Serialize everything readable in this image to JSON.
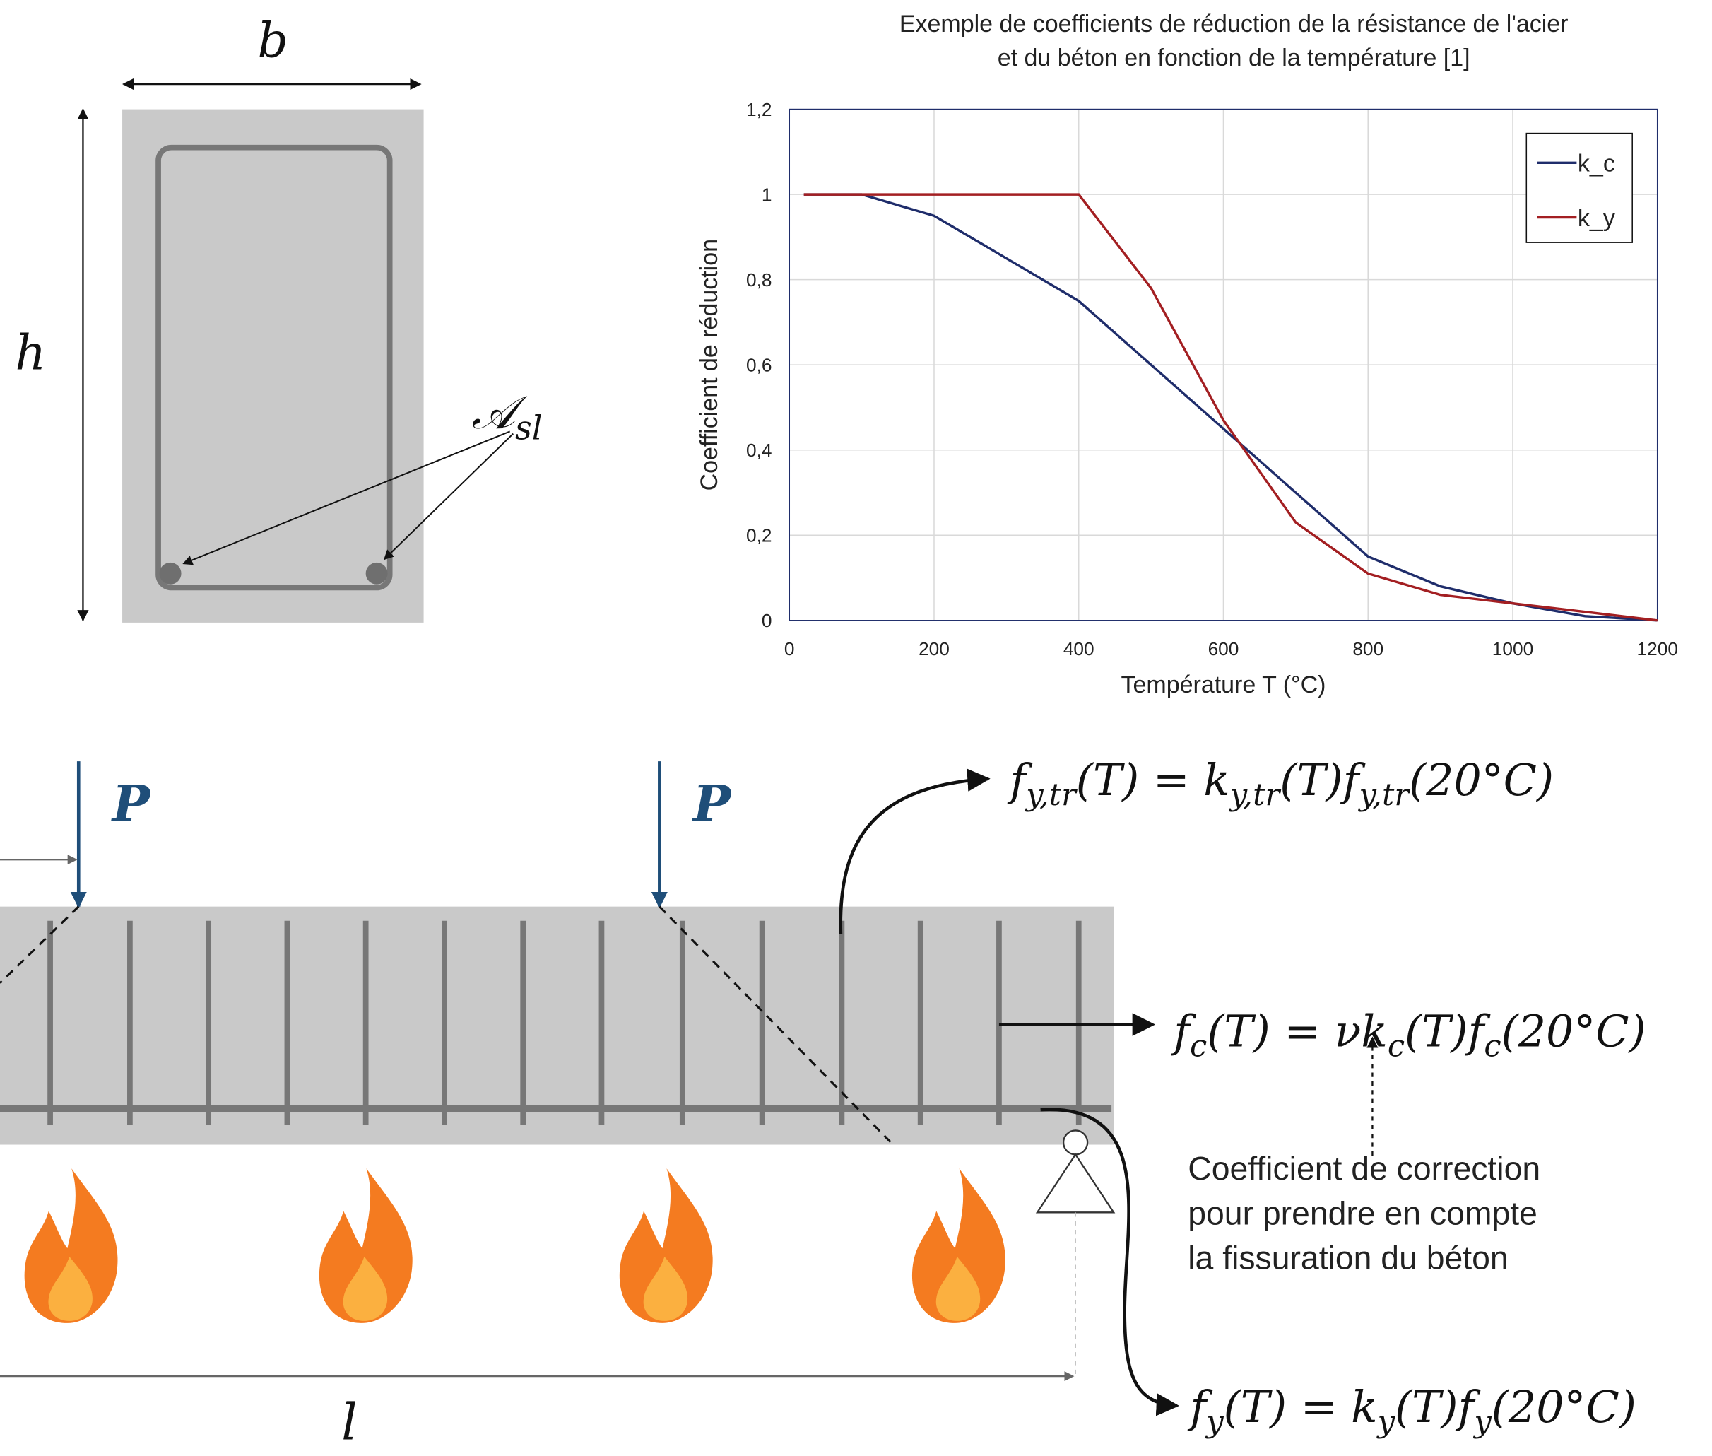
{
  "chart_data": {
    "type": "line",
    "title": [
      "Exemple de coefficients de réduction de la résistance de l'acier",
      "et du béton en fonction de la température  [1]"
    ],
    "x_label": "Température T (°C)",
    "y_label": "Coefficient de réduction",
    "x": [
      20,
      100,
      200,
      300,
      400,
      500,
      600,
      700,
      800,
      900,
      1000,
      1100,
      1200
    ],
    "series": [
      {
        "name": "k_c",
        "color": "#1f2d6b",
        "values": [
          1,
          1,
          0.95,
          0.85,
          0.75,
          0.6,
          0.45,
          0.3,
          0.15,
          0.08,
          0.04,
          0.01,
          0
        ]
      },
      {
        "name": "k_y",
        "color": "#a31f22",
        "values": [
          1,
          1,
          1,
          1,
          1,
          0.78,
          0.47,
          0.23,
          0.11,
          0.06,
          0.04,
          0.02,
          0
        ]
      }
    ],
    "xlim": [
      0,
      1200
    ],
    "xticks": [
      0,
      200,
      400,
      600,
      800,
      1000,
      1200
    ],
    "ylim": [
      0,
      1.2
    ],
    "yticks": [
      0,
      {
        "value": 0.2,
        "label": "0,2"
      },
      {
        "value": 0.4,
        "label": "0,4"
      },
      {
        "value": 0.6,
        "label": "0,6"
      },
      {
        "value": 0.8,
        "label": "0,8"
      },
      1,
      {
        "value": 1.2,
        "label": "1,2"
      }
    ],
    "grid": true,
    "legend": "upper right"
  },
  "section": {
    "b": "b",
    "h": "h",
    "asl": [
      "𝒜",
      "sl"
    ]
  },
  "beam": {
    "loads": [
      "P",
      "P"
    ],
    "span": "l"
  },
  "formulas": [
    [
      "f",
      "y,tr",
      "(T) = k",
      "y,tr",
      "(T)f",
      "y,tr",
      "(20°C)"
    ],
    [
      "f",
      "c",
      "(T) = νk",
      "c",
      "(T)f",
      "c",
      "(20°C)"
    ],
    [
      "f",
      "y",
      "(T) = k",
      "y",
      "(T)f",
      "y",
      "(20°C)"
    ]
  ],
  "annotation": [
    "Coefficient de correction",
    "pour prendre en compte",
    "la fissuration du béton"
  ]
}
